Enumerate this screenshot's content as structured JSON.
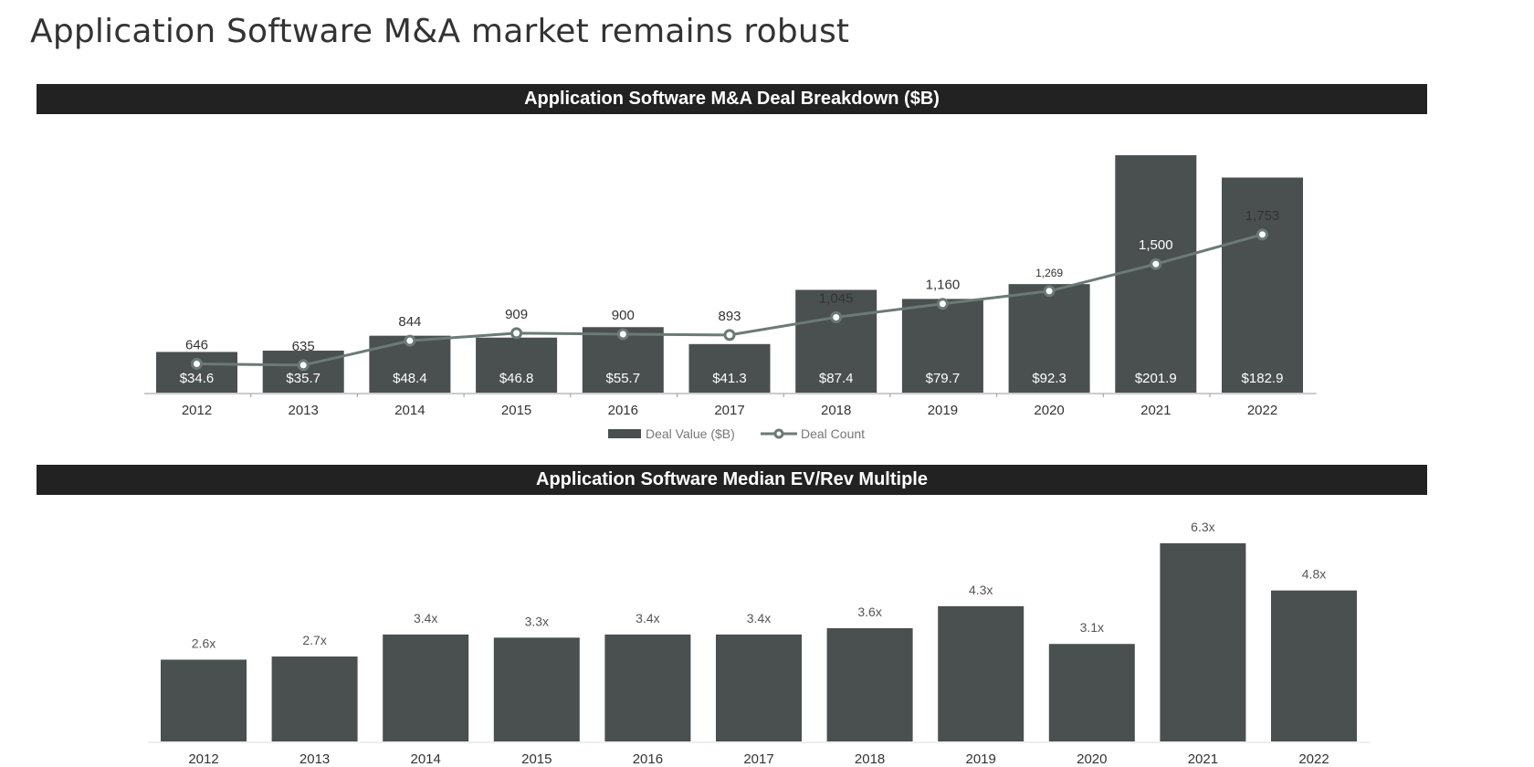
{
  "page": {
    "title": "Application Software M&A market remains robust"
  },
  "sections": {
    "deal_breakdown_title": "Application Software M&A Deal Breakdown ($B)",
    "ev_rev_title": "Application Software Median EV/Rev Multiple"
  },
  "colors": {
    "bar": "#4a4f4f",
    "line": "#6b7a76",
    "header_bg": "#222222",
    "text": "#333333",
    "axis": "#999999"
  },
  "chart_data": [
    {
      "type": "bar",
      "title": "Application Software M&A Deal Breakdown ($B)",
      "categories": [
        "2012",
        "2013",
        "2014",
        "2015",
        "2016",
        "2017",
        "2018",
        "2019",
        "2020",
        "2021",
        "2022"
      ],
      "series": [
        {
          "name": "Deal Value ($B)",
          "type": "bar",
          "values": [
            34.6,
            35.7,
            48.4,
            46.8,
            55.7,
            41.3,
            87.4,
            79.7,
            92.3,
            201.9,
            182.9
          ],
          "labels": [
            "$34.6",
            "$35.7",
            "$48.4",
            "$46.8",
            "$55.7",
            "$41.3",
            "$87.4",
            "$79.7",
            "$92.3",
            "$201.9",
            "$182.9"
          ]
        },
        {
          "name": "Deal Count",
          "type": "line",
          "values": [
            646,
            635,
            844,
            909,
            900,
            893,
            1045,
            1160,
            1269,
            1500,
            1753
          ],
          "labels": [
            "646",
            "635",
            "844",
            "909",
            "900",
            "893",
            "1,045",
            "1,160",
            "1,269",
            "1,500",
            "1,753"
          ]
        }
      ],
      "legend": "bottom-center"
    },
    {
      "type": "bar",
      "title": "Application Software Median EV/Rev Multiple",
      "categories": [
        "2012",
        "2013",
        "2014",
        "2015",
        "2016",
        "2017",
        "2018",
        "2019",
        "2020",
        "2021",
        "2022"
      ],
      "values": [
        2.6,
        2.7,
        3.4,
        3.3,
        3.4,
        3.4,
        3.6,
        4.3,
        3.1,
        6.3,
        4.8
      ],
      "labels": [
        "2.6x",
        "2.7x",
        "3.4x",
        "3.3x",
        "3.4x",
        "3.4x",
        "3.6x",
        "4.3x",
        "3.1x",
        "6.3x",
        "4.8x"
      ]
    }
  ]
}
